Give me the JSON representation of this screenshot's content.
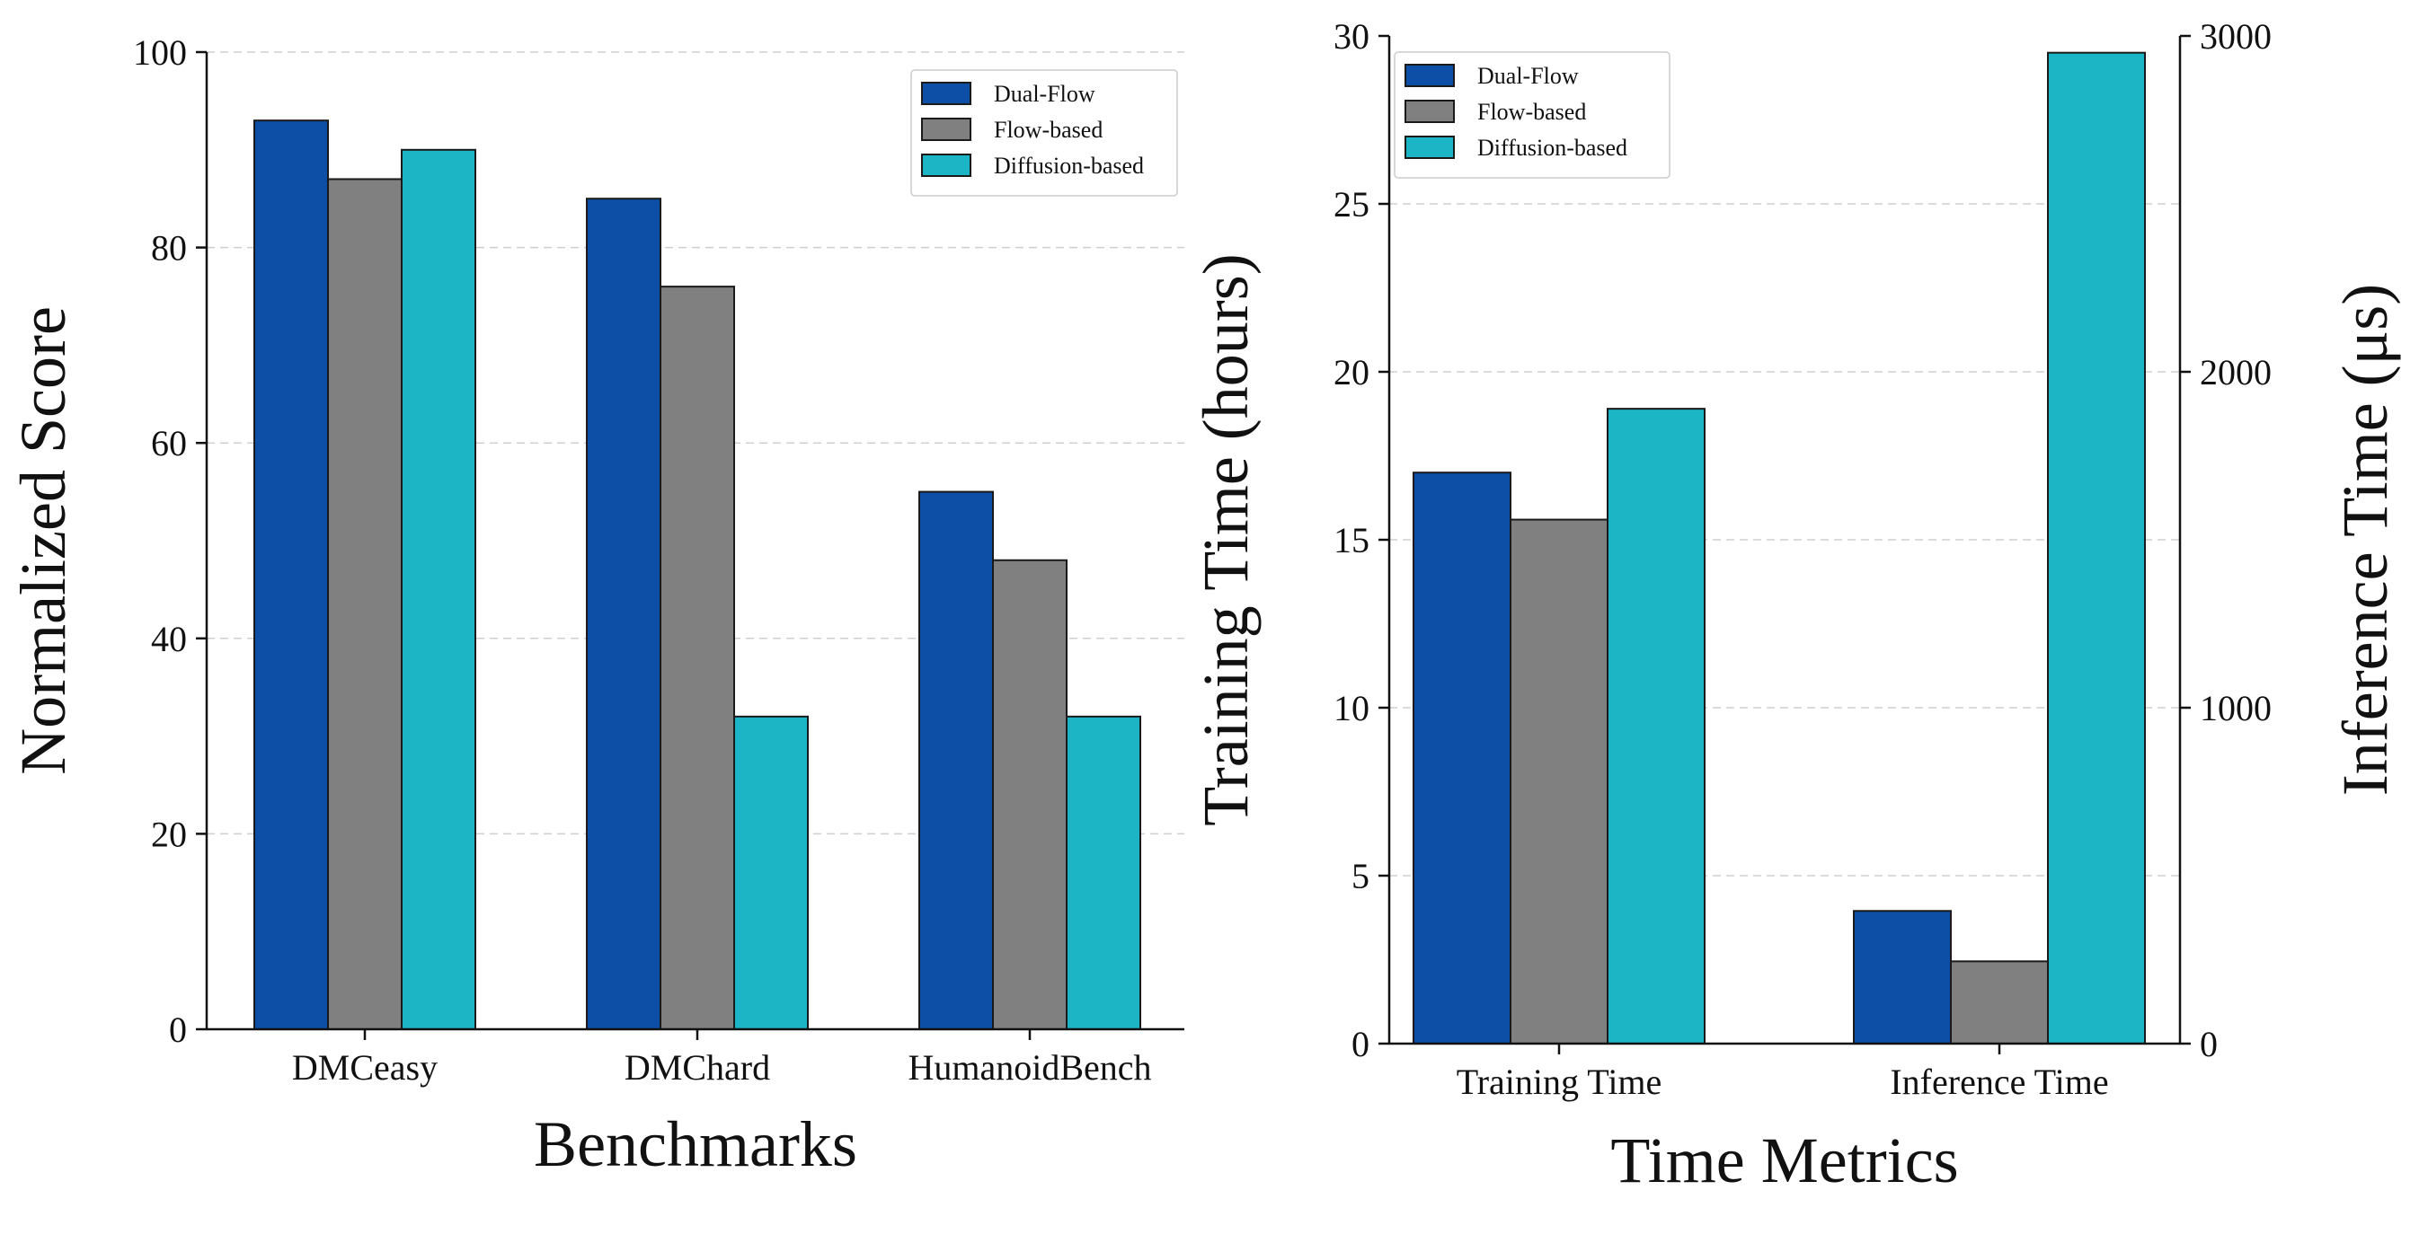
{
  "colors": {
    "Dual-Flow": "#0d4fa6",
    "Flow-based": "#808080",
    "Diffusion-based": "#1bb5c5"
  },
  "chart_data": [
    {
      "type": "bar",
      "title": "",
      "xlabel": "Benchmarks",
      "ylabel": "Normalized Score",
      "categories": [
        "DMCeasy",
        "DMChard",
        "HumanoidBench"
      ],
      "series": [
        {
          "name": "Dual-Flow",
          "values": [
            93,
            85,
            55
          ]
        },
        {
          "name": "Flow-based",
          "values": [
            87,
            76,
            48
          ]
        },
        {
          "name": "Diffusion-based",
          "values": [
            90,
            32,
            32
          ]
        }
      ],
      "ylim": [
        0,
        100
      ],
      "yticks": [
        "0",
        "20",
        "40",
        "60",
        "80",
        "100"
      ],
      "grid": true,
      "legend": "top-right"
    },
    {
      "type": "bar",
      "title": "",
      "xlabel": "Time Metrics",
      "ylabel": "Training Time (hours)",
      "y2label": "Inference Time (μs)",
      "categories": [
        "Training Time",
        "Inference Time"
      ],
      "series": [
        {
          "name": "Dual-Flow",
          "values": [
            17.0,
            3.95
          ]
        },
        {
          "name": "Flow-based",
          "values": [
            15.6,
            2.45
          ]
        },
        {
          "name": "Diffusion-based",
          "values": [
            18.9,
            29.5
          ]
        }
      ],
      "secondary_axis_values": {
        "category": "Inference Time",
        "Dual-Flow": 395,
        "Flow-based": 245,
        "Diffusion-based": 2950
      },
      "ylim": [
        0,
        30
      ],
      "y2lim": [
        0,
        3000
      ],
      "yticks": [
        "0",
        "5",
        "10",
        "15",
        "20",
        "25",
        "30"
      ],
      "y2ticks": [
        "0",
        "1000",
        "2000",
        "3000"
      ],
      "grid": true,
      "legend": "top-left"
    }
  ]
}
